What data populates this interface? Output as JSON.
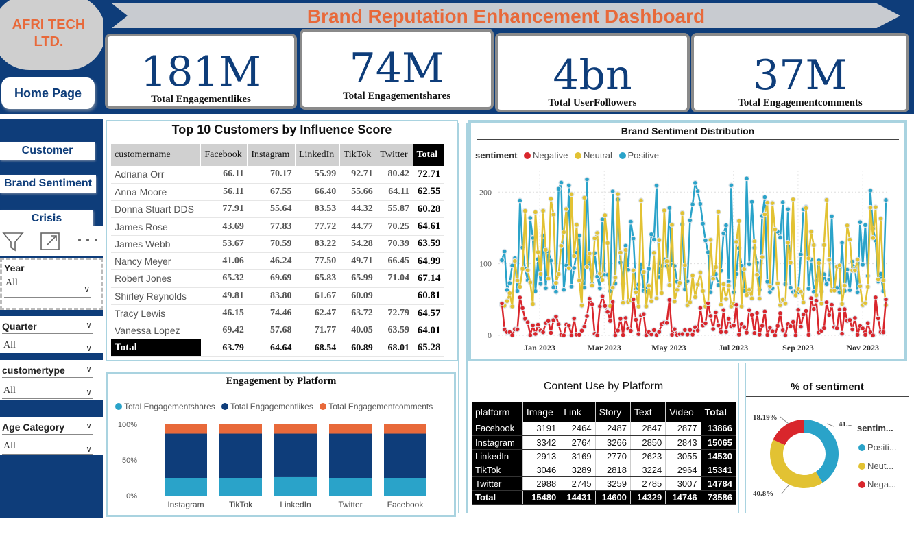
{
  "logo": {
    "line1": "AFRI TECH",
    "line2": "LTD."
  },
  "nav": {
    "home": "Home Page",
    "customer": "Customer",
    "brand_sentiment": "Brand Sentiment",
    "crisis": "Crisis"
  },
  "tools": {
    "filter_icon": "filter-icon",
    "focus_icon": "focus-mode-icon",
    "more_icon": "more-options-icon"
  },
  "slicers": [
    {
      "title": "Year",
      "value": "All"
    },
    {
      "title": "Quarter",
      "value": "All"
    },
    {
      "title": "customertype",
      "value": "All"
    },
    {
      "title": "Age Category",
      "value": "All"
    }
  ],
  "title": "Brand Reputation Enhancement Dashboard",
  "kpis": [
    {
      "value": "181M",
      "label": "Total Engagementlikes"
    },
    {
      "value": "74M",
      "label": "Total Engagementshares"
    },
    {
      "value": "4bn",
      "label": "Total UserFollowers"
    },
    {
      "value": "37M",
      "label": "Total Engagementcomments"
    }
  ],
  "customers": {
    "title": "Top 10 Customers by Influence Score",
    "headers": [
      "customername",
      "Facebook",
      "Instagram",
      "LinkedIn",
      "TikTok",
      "Twitter",
      "Total"
    ],
    "rows": [
      [
        "Adriana Orr",
        "66.11",
        "70.17",
        "55.99",
        "92.71",
        "80.42",
        "72.71"
      ],
      [
        "Anna Moore",
        "56.11",
        "67.55",
        "66.40",
        "55.66",
        "64.11",
        "62.55"
      ],
      [
        "Donna Stuart DDS",
        "77.91",
        "55.64",
        "83.53",
        "44.32",
        "55.87",
        "60.28"
      ],
      [
        "James Rose",
        "43.69",
        "77.83",
        "77.72",
        "44.77",
        "70.25",
        "64.61"
      ],
      [
        "James Webb",
        "53.67",
        "70.59",
        "83.22",
        "54.28",
        "70.39",
        "63.59"
      ],
      [
        "Nancy Meyer",
        "41.06",
        "46.24",
        "77.50",
        "49.71",
        "66.45",
        "64.99"
      ],
      [
        "Robert Jones",
        "65.32",
        "69.69",
        "65.83",
        "65.99",
        "71.04",
        "67.14"
      ],
      [
        "Shirley Reynolds",
        "49.81",
        "83.80",
        "61.67",
        "60.09",
        "",
        "60.81"
      ],
      [
        "Tracy Lewis",
        "46.15",
        "74.46",
        "62.47",
        "63.72",
        "72.79",
        "64.57"
      ],
      [
        "Vanessa Lopez",
        "69.42",
        "57.68",
        "71.77",
        "40.05",
        "63.59",
        "64.01"
      ]
    ],
    "total": [
      "Total",
      "63.79",
      "64.64",
      "68.54",
      "60.89",
      "68.01",
      "65.28"
    ]
  },
  "content_use": {
    "title": "Content Use by Platform",
    "headers": [
      "platform",
      "Image",
      "Link",
      "Story",
      "Text",
      "Video",
      "Total"
    ],
    "rows": [
      [
        "Facebook",
        "3191",
        "2464",
        "2487",
        "2847",
        "2877",
        "13866"
      ],
      [
        "Instagram",
        "3342",
        "2764",
        "3266",
        "2850",
        "2843",
        "15065"
      ],
      [
        "LinkedIn",
        "2913",
        "3169",
        "2770",
        "2623",
        "3055",
        "14530"
      ],
      [
        "TikTok",
        "3046",
        "3289",
        "2818",
        "3224",
        "2964",
        "15341"
      ],
      [
        "Twitter",
        "2988",
        "2745",
        "3259",
        "2785",
        "3007",
        "14784"
      ]
    ],
    "total": [
      "Total",
      "15480",
      "14431",
      "14600",
      "14329",
      "14746",
      "73586"
    ]
  },
  "chart_data": [
    {
      "type": "line",
      "title": "Brand Sentiment Distribution",
      "legend_title": "sentiment",
      "legend_position": "top-left",
      "x_ticks": [
        "Jan 2023",
        "Mar 2023",
        "May 2023",
        "Jul 2023",
        "Sep 2023",
        "Nov 2023"
      ],
      "y_ticks": [
        "0",
        "100",
        "200"
      ],
      "ylim": [
        0,
        230
      ],
      "grid": true,
      "series": [
        {
          "name": "Negative",
          "color": "#d9262c",
          "min": 0,
          "max": 55
        },
        {
          "name": "Neutral",
          "color": "#e2c233",
          "min": 40,
          "max": 200
        },
        {
          "name": "Positive",
          "color": "#2aa3c9",
          "min": 60,
          "max": 222
        }
      ]
    },
    {
      "type": "bar",
      "title": "Engagement by Platform",
      "stacked": "100%",
      "legend_position": "top",
      "categories": [
        "Instagram",
        "TikTok",
        "LinkedIn",
        "Twitter",
        "Facebook"
      ],
      "y_ticks": [
        "100%",
        "50%",
        "0%"
      ],
      "series": [
        {
          "name": "Total Engagementshares",
          "color": "#2aa3c9",
          "values": [
            25,
            25,
            26,
            25,
            25
          ]
        },
        {
          "name": "Total Engagementlikes",
          "color": "#0e3d7a",
          "values": [
            62,
            62,
            61,
            62,
            62
          ]
        },
        {
          "name": "Total Engagementcomments",
          "color": "#e8693a",
          "values": [
            13,
            13,
            13,
            13,
            13
          ]
        }
      ]
    },
    {
      "type": "pie",
      "title": "% of sentiment",
      "legend_title": "sentim...",
      "slices": [
        {
          "name": "Positi...",
          "color": "#2aa3c9",
          "label": "41...",
          "value": 41.0
        },
        {
          "name": "Neut...",
          "color": "#e2c233",
          "label": "40.8%",
          "value": 40.8
        },
        {
          "name": "Nega...",
          "color": "#d9262c",
          "label": "18.19%",
          "value": 18.19
        }
      ]
    }
  ]
}
